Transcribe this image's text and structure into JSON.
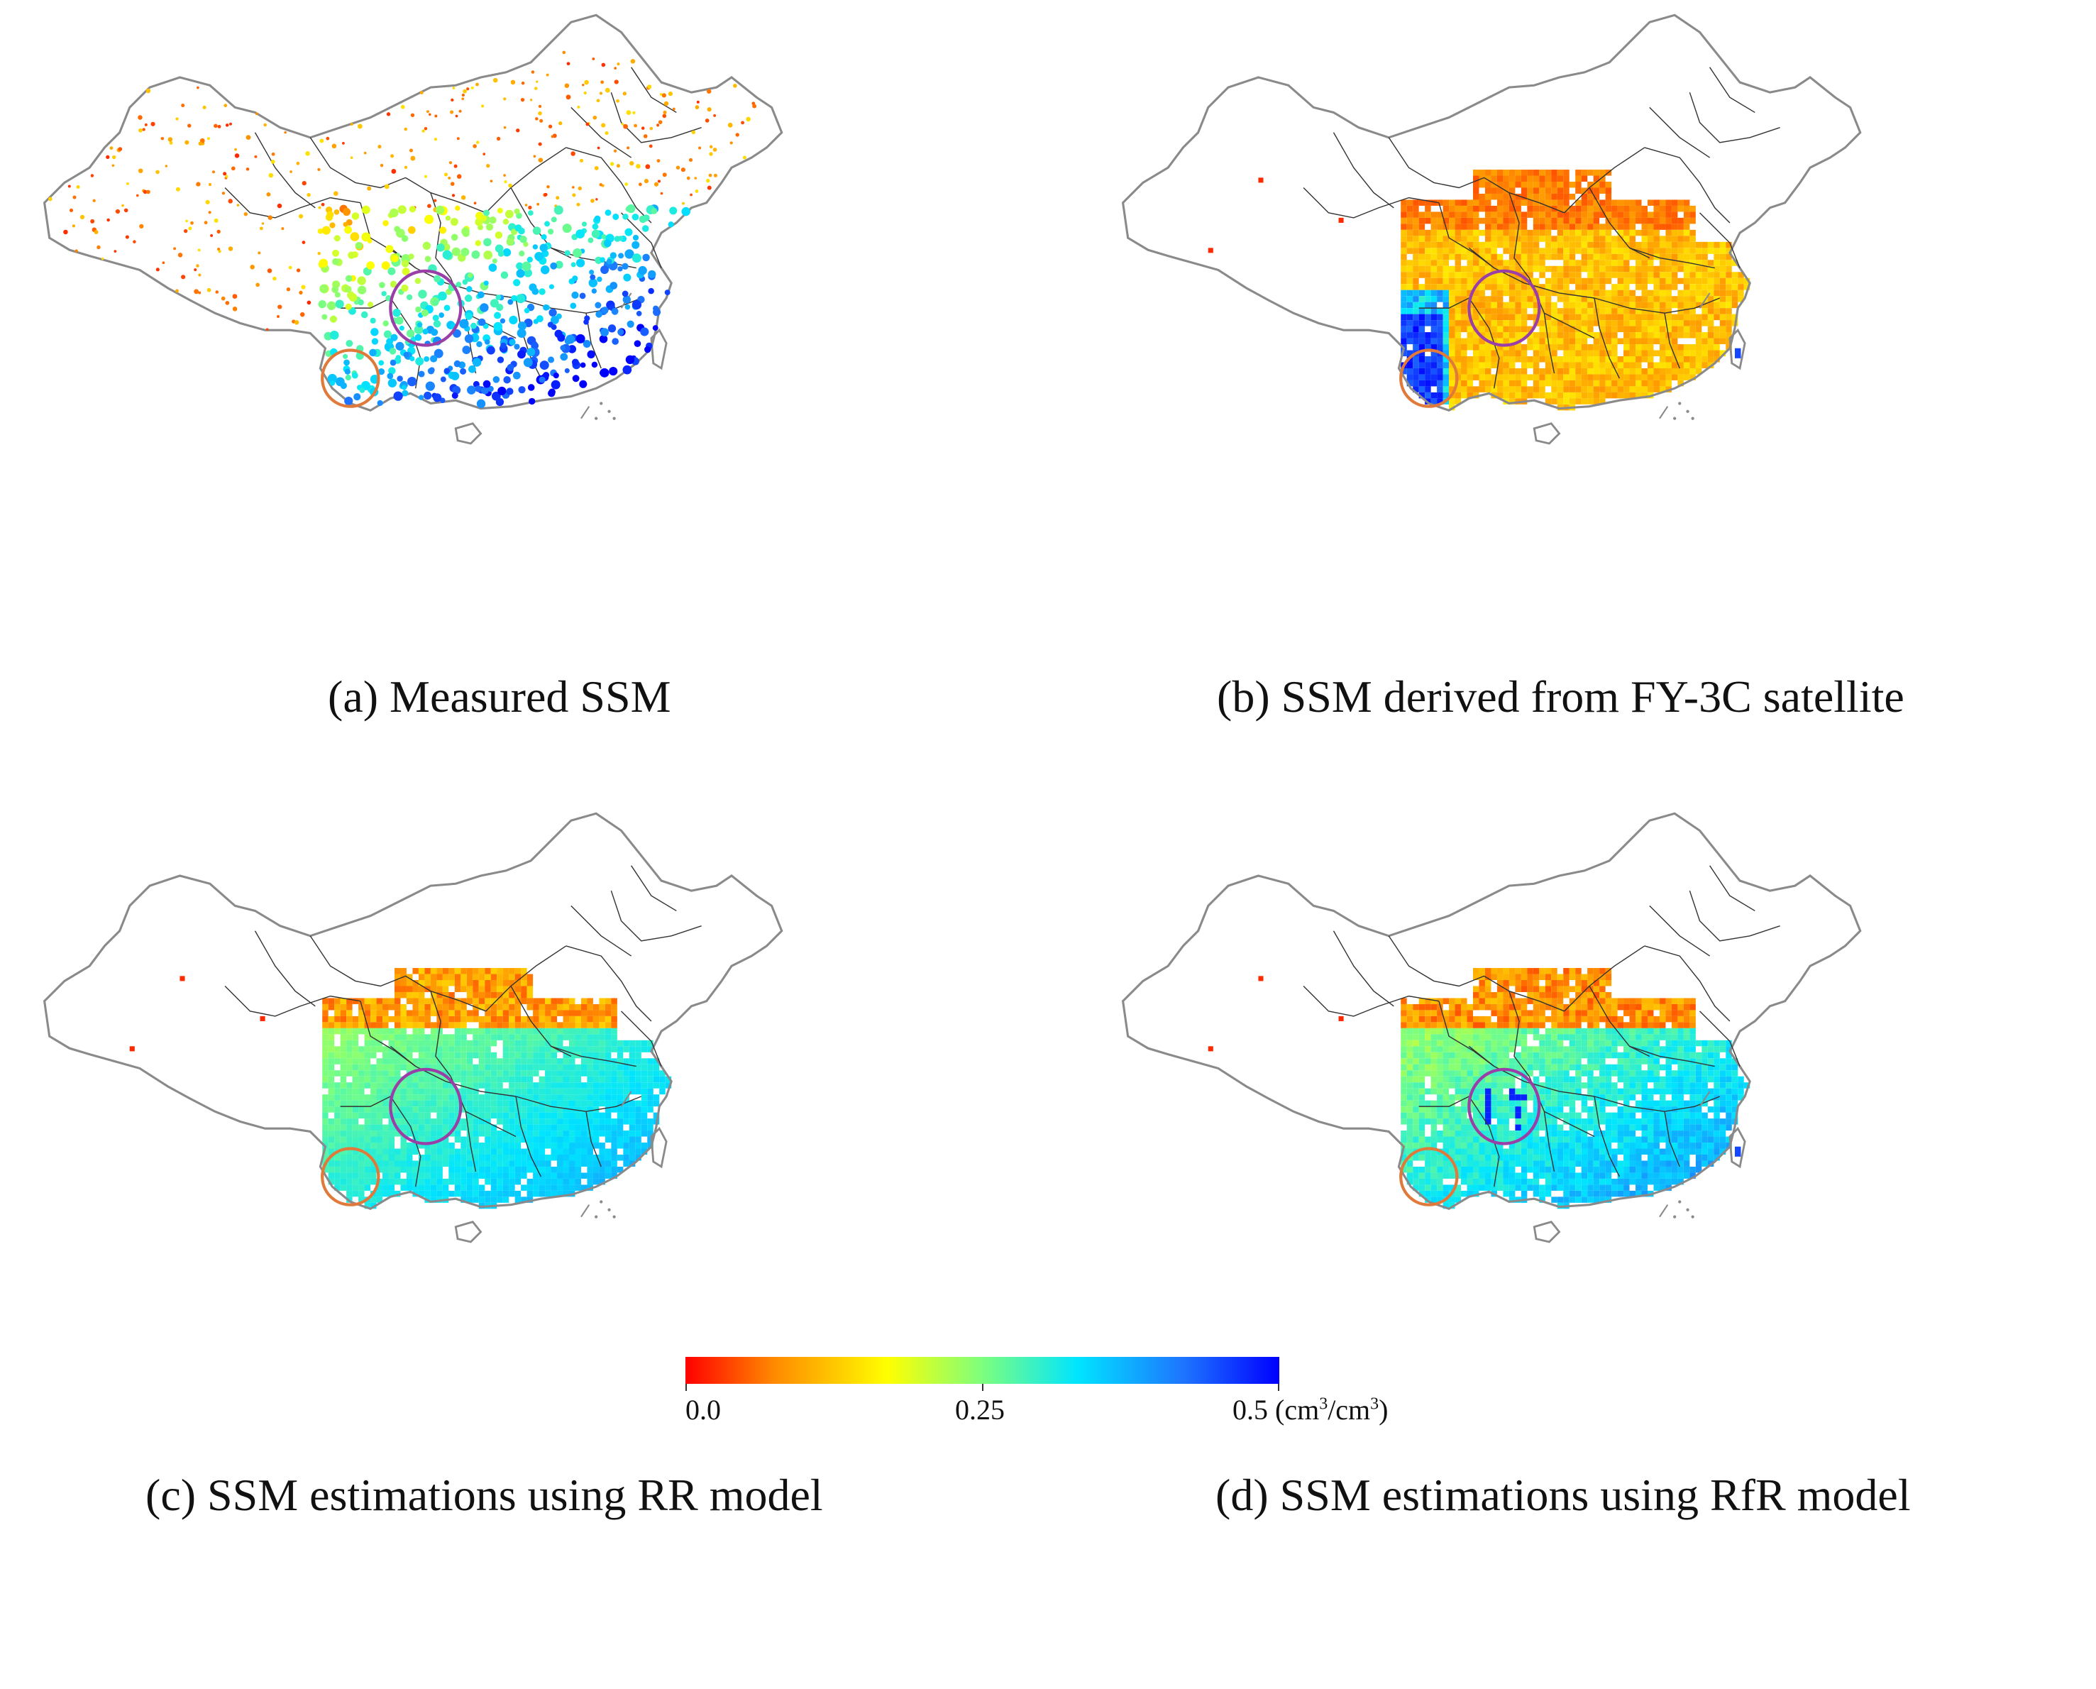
{
  "panels": [
    {
      "id": "a",
      "caption": "(a) Measured SSM",
      "style": "points"
    },
    {
      "id": "b",
      "caption": "(b) SSM derived from FY-3C satellite",
      "style": "raster"
    },
    {
      "id": "c",
      "caption": "(c) SSM estimations using RR model",
      "style": "raster"
    },
    {
      "id": "d",
      "caption": "(d) SSM estimations using RfR model",
      "style": "raster"
    }
  ],
  "colorbar": {
    "min_label": "0.0",
    "mid_label": "0.25",
    "max_label": "0.5",
    "unit_prefix": "(cm",
    "unit_mid": "/cm",
    "unit_suffix": ")",
    "unit_sup": "3",
    "stops": [
      "#ff0000",
      "#ff8a00",
      "#ffff00",
      "#7dff7d",
      "#00e5ff",
      "#1e74ff",
      "#0000ff"
    ]
  },
  "colors": {
    "outline": "#8a8a8a",
    "province": "#333333",
    "circle_purple": "#9b3fa8",
    "circle_orange": "#e07a3a"
  }
}
